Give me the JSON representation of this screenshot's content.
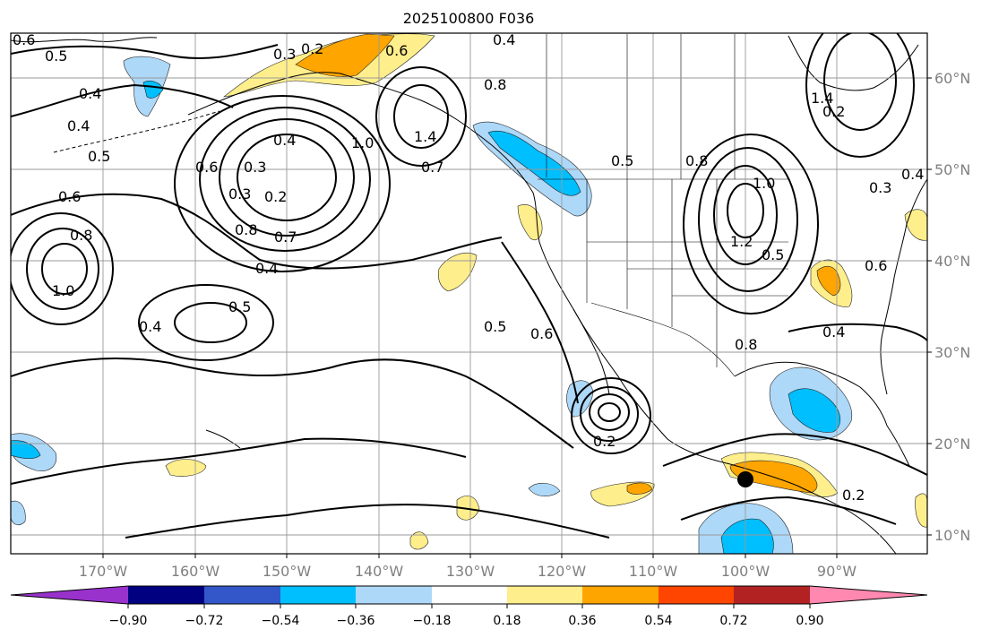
{
  "title": "2025100800 F036",
  "longitude_labels": [
    "170°W",
    "160°W",
    "150°W",
    "140°W",
    "130°W",
    "120°W",
    "110°W",
    "100°W",
    "90°W"
  ],
  "latitude_labels": [
    "60°N",
    "50°N",
    "40°N",
    "30°N",
    "20°N",
    "10°N"
  ],
  "colorbar": {
    "colors": {
      "under": "#9932cc",
      "c1": "#000080",
      "c2": "#3357c8",
      "c3": "#00bfff",
      "c4": "#add8f8",
      "c5": "#ffffff",
      "c6": "#ffee8c",
      "c7": "#ffa500",
      "c8": "#ff4500",
      "c9": "#b22222",
      "over": "#ff88b0"
    },
    "tick_labels": [
      "−0.90",
      "−0.72",
      "−0.54",
      "−0.36",
      "−0.18",
      "0.18",
      "0.36",
      "0.54",
      "0.72",
      "0.90"
    ]
  },
  "contour_labels": [
    "0.6",
    "0.5",
    "0.4",
    "0.4",
    "0.5",
    "0.3",
    "0.2",
    "0.6",
    "0.4",
    "0.8",
    "0.4",
    "1.0",
    "1.4",
    "0.3",
    "0.6",
    "0.3",
    "0.2",
    "0.8",
    "0.7",
    "0.5",
    "0.7",
    "0.6",
    "0.8",
    "1.0",
    "0.4",
    "0.4",
    "0.5",
    "0.5",
    "0.6",
    "0.8",
    "0.5",
    "1.2",
    "0.8",
    "1.0",
    "0.3",
    "1.4",
    "0.2",
    "0.4",
    "0.6",
    "0.4",
    "0.2",
    "0.2"
  ],
  "marker_color": "#000000"
}
